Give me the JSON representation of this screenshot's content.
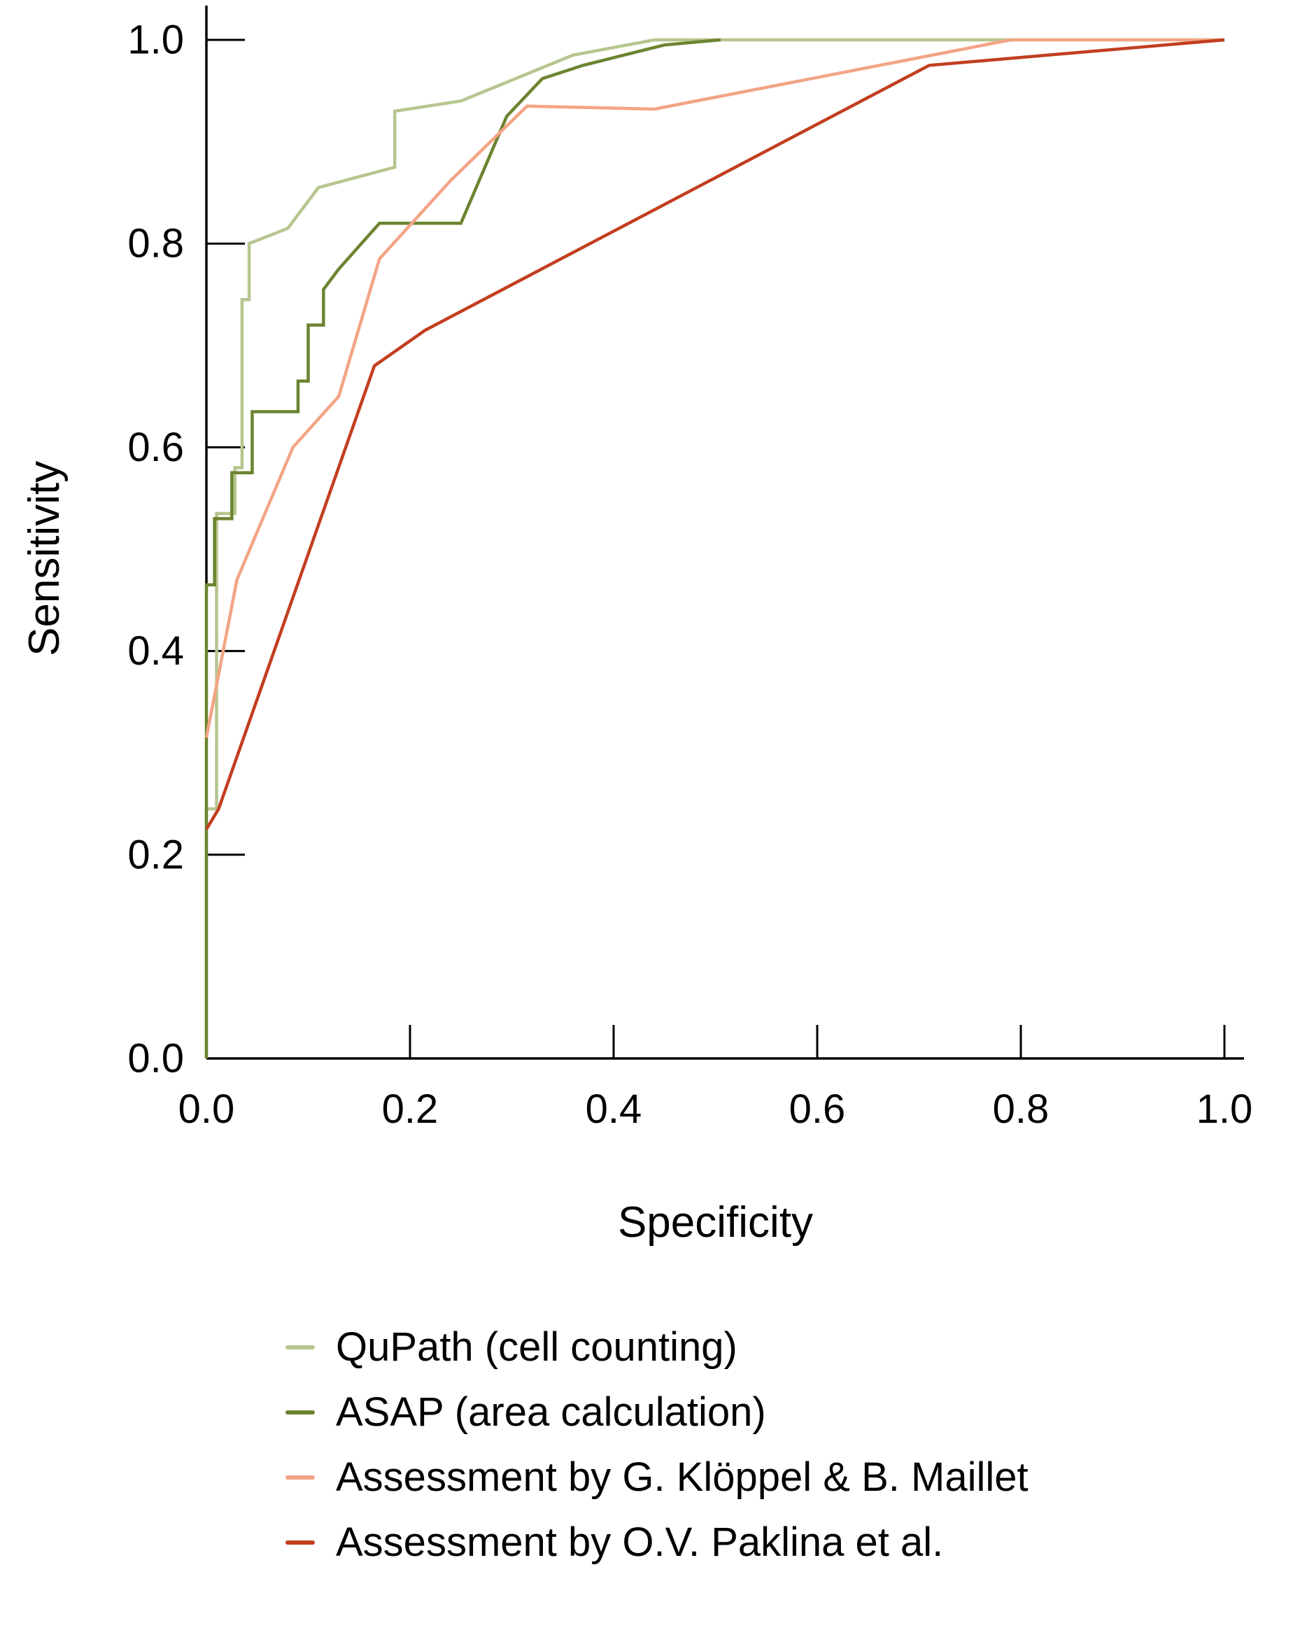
{
  "chart_data": {
    "type": "line",
    "subtype": "roc-curves",
    "title": "",
    "xlabel": "Specificity",
    "ylabel": "Sensitivity",
    "xlim": [
      0.0,
      1.0
    ],
    "ylim": [
      0.0,
      1.0
    ],
    "xticks": [
      0.0,
      0.2,
      0.4,
      0.6,
      0.8,
      1.0
    ],
    "yticks": [
      0.0,
      0.2,
      0.4,
      0.6,
      0.8,
      1.0
    ],
    "grid": false,
    "legend_position": "below-chart",
    "axis_color": "#000000",
    "series": [
      {
        "name": "QuPath (cell counting)",
        "color": "#b6c68e",
        "points": [
          [
            0,
            0
          ],
          [
            0,
            0.245
          ],
          [
            0.01,
            0.245
          ],
          [
            0.01,
            0.535
          ],
          [
            0.028,
            0.535
          ],
          [
            0.028,
            0.58
          ],
          [
            0.035,
            0.58
          ],
          [
            0.035,
            0.745
          ],
          [
            0.042,
            0.745
          ],
          [
            0.042,
            0.8
          ],
          [
            0.08,
            0.815
          ],
          [
            0.11,
            0.855
          ],
          [
            0.185,
            0.875
          ],
          [
            0.185,
            0.93
          ],
          [
            0.25,
            0.94
          ],
          [
            0.36,
            0.985
          ],
          [
            0.44,
            1.0
          ],
          [
            1,
            1.0
          ]
        ]
      },
      {
        "name": "ASAP (area calculation)",
        "color": "#6c8430",
        "points": [
          [
            0,
            0
          ],
          [
            0,
            0.465
          ],
          [
            0.008,
            0.465
          ],
          [
            0.008,
            0.53
          ],
          [
            0.025,
            0.53
          ],
          [
            0.025,
            0.575
          ],
          [
            0.045,
            0.575
          ],
          [
            0.045,
            0.635
          ],
          [
            0.09,
            0.635
          ],
          [
            0.09,
            0.665
          ],
          [
            0.1,
            0.665
          ],
          [
            0.1,
            0.72
          ],
          [
            0.115,
            0.72
          ],
          [
            0.115,
            0.755
          ],
          [
            0.13,
            0.775
          ],
          [
            0.17,
            0.82
          ],
          [
            0.25,
            0.82
          ],
          [
            0.295,
            0.925
          ],
          [
            0.33,
            0.962
          ],
          [
            0.37,
            0.975
          ],
          [
            0.45,
            0.995
          ],
          [
            0.505,
            1.0
          ]
        ]
      },
      {
        "name": "Assessment by G. Klöppel & B. Maillet",
        "color": "#f2a485",
        "points": [
          [
            0,
            0.315
          ],
          [
            0.03,
            0.47
          ],
          [
            0.085,
            0.6
          ],
          [
            0.13,
            0.65
          ],
          [
            0.17,
            0.785
          ],
          [
            0.24,
            0.862
          ],
          [
            0.315,
            0.935
          ],
          [
            0.44,
            0.932
          ],
          [
            0.79,
            1.0
          ],
          [
            1,
            1.0
          ]
        ]
      },
      {
        "name": "Assessment by O.V. Paklina et al.",
        "color": "#c23e1f",
        "points": [
          [
            0,
            0.225
          ],
          [
            0.012,
            0.245
          ],
          [
            0.165,
            0.68
          ],
          [
            0.215,
            0.715
          ],
          [
            0.71,
            0.975
          ],
          [
            1,
            1.0
          ]
        ]
      }
    ]
  }
}
